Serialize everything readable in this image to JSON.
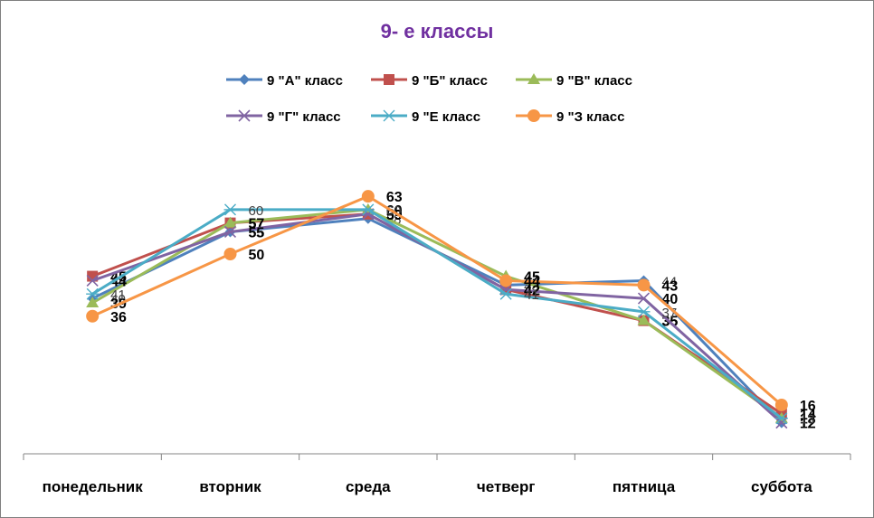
{
  "chart_data": {
    "type": "line",
    "title": "9- е классы",
    "categories": [
      "понедельник",
      "вторник",
      "среда",
      "четверг",
      "пятница",
      "суббота"
    ],
    "legend_position": "top",
    "grid": false,
    "ylim": [
      5,
      95
    ],
    "series": [
      {
        "name": "9 \"А\" класс",
        "values": [
          40,
          55,
          58,
          43,
          44,
          12
        ],
        "labels": [
          "40",
          "55",
          "58",
          "43",
          "44",
          "12"
        ],
        "color": "#4f81bd",
        "marker": "diamond",
        "label_bold": false
      },
      {
        "name": "9 \"Б\" класс",
        "values": [
          45,
          57,
          59,
          42,
          35,
          14
        ],
        "labels": [
          "45",
          "57",
          "59",
          "42",
          "35",
          "14"
        ],
        "color": "#c0504d",
        "marker": "square",
        "label_bold": true
      },
      {
        "name": "9 \"В\" класс",
        "values": [
          39,
          57,
          60,
          45,
          35,
          13
        ],
        "labels": [
          "39",
          "57",
          "60",
          "45",
          "35",
          "13"
        ],
        "color": "#9bbb59",
        "marker": "triangle",
        "label_bold": true
      },
      {
        "name": "9 \"Г\" класс",
        "values": [
          44,
          55,
          59,
          42,
          40,
          12
        ],
        "labels": [
          "44",
          "55",
          "59",
          "42",
          "40",
          "12"
        ],
        "color": "#8064a2",
        "marker": "x",
        "label_bold": true
      },
      {
        "name": "9 \"Е класс",
        "values": [
          41,
          60,
          60,
          41,
          37,
          13
        ],
        "labels": [
          "41",
          "60",
          "60",
          "41",
          "37",
          "13"
        ],
        "color": "#4bacc6",
        "marker": "star",
        "label_bold": false
      },
      {
        "name": "9 \"З класс",
        "values": [
          36,
          50,
          63,
          44,
          43,
          16
        ],
        "labels": [
          "36",
          "50",
          "63",
          "44",
          "43",
          "16"
        ],
        "color": "#f79646",
        "marker": "circle",
        "label_bold": true
      }
    ]
  }
}
